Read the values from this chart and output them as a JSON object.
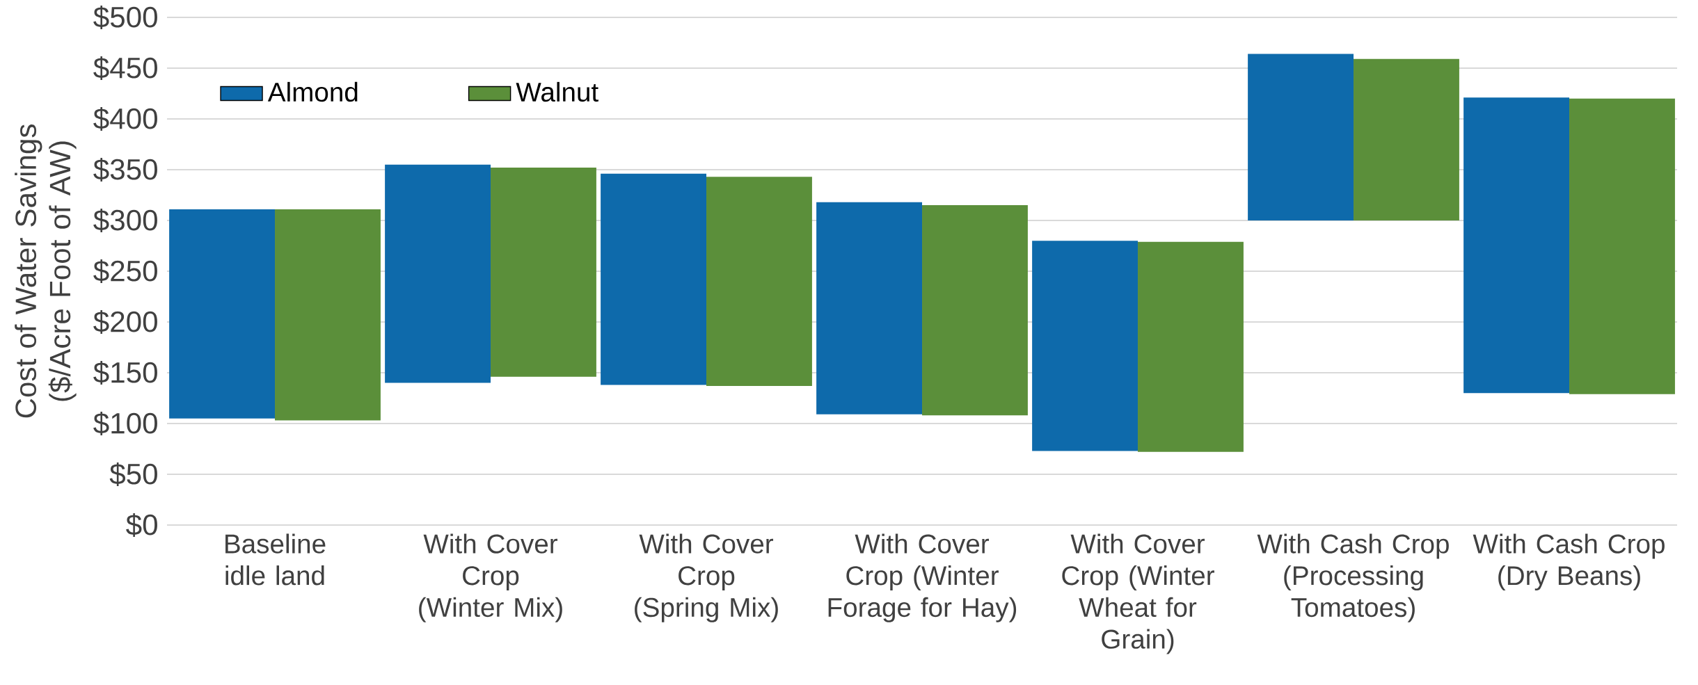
{
  "chart_data": {
    "type": "bar",
    "ylabel": "Cost of Water Savings ($/Acre Foot of AW)",
    "categories": [
      "Baseline idle land",
      "With Cover Crop (Winter Mix)",
      "With Cover Crop (Spring Mix)",
      "With Cover Crop (Winter Forage for Hay)",
      "With Cover Crop (Winter Wheat for Grain)",
      "With Cash Crop (Processing Tomatoes)",
      "With Cash Crop (Dry Beans)"
    ],
    "series": [
      {
        "name": "Almond",
        "color": "#0e6aab",
        "base": [
          105,
          140,
          138,
          109,
          73,
          300,
          130
        ],
        "values": [
          206,
          215,
          208,
          209,
          207,
          164,
          291
        ]
      },
      {
        "name": "Walnut",
        "color": "#5b8f3a",
        "base": [
          103,
          146,
          137,
          108,
          72,
          300,
          129
        ],
        "values": [
          208,
          206,
          206,
          207,
          207,
          159,
          291
        ]
      }
    ],
    "ylim": [
      0,
      500
    ],
    "yticks": [
      {
        "value": 0,
        "label": "$0"
      },
      {
        "value": 50,
        "label": "$50"
      },
      {
        "value": 100,
        "label": "$100"
      },
      {
        "value": 150,
        "label": "$150"
      },
      {
        "value": 200,
        "label": "$200"
      },
      {
        "value": 250,
        "label": "$250"
      },
      {
        "value": 300,
        "label": "$300"
      },
      {
        "value": 350,
        "label": "$350"
      },
      {
        "value": 400,
        "label": "$400"
      },
      {
        "value": 450,
        "label": "$450"
      },
      {
        "value": 500,
        "label": "$500"
      }
    ],
    "grid": "y",
    "legend": "top left"
  }
}
